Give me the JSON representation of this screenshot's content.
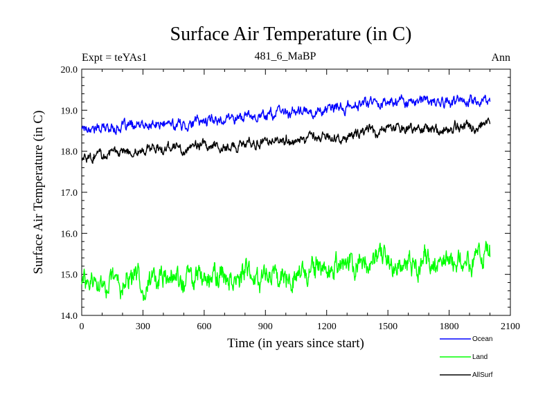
{
  "chart_data": {
    "type": "line",
    "title": "Surface Air Temperature (in C)",
    "expt_label": "Expt = teYAs1",
    "subtitle": "481_6_MaBP",
    "period": "Ann",
    "xlabel": "Time (in years since start)",
    "ylabel": "Surface Air Temperature (in C)",
    "xlim": [
      0,
      2100
    ],
    "ylim": [
      14.0,
      20.0
    ],
    "x_ticks": [
      0,
      300,
      600,
      900,
      1200,
      1500,
      1800,
      2100
    ],
    "x_tick_labels": [
      "0",
      "300",
      "600",
      "900",
      "1200",
      "1500",
      "1800",
      "2100"
    ],
    "y_ticks": [
      14.0,
      15.0,
      16.0,
      17.0,
      18.0,
      19.0,
      20.0
    ],
    "y_tick_labels": [
      "14.0",
      "15.0",
      "16.0",
      "17.0",
      "18.0",
      "19.0",
      "20.0"
    ],
    "series": [
      {
        "name": "Ocean",
        "color": "#0000ff",
        "x": [
          0,
          100,
          200,
          300,
          400,
          500,
          600,
          700,
          800,
          900,
          1000,
          1100,
          1200,
          1300,
          1400,
          1500,
          1600,
          1700,
          1800,
          1900,
          2000
        ],
        "values": [
          18.6,
          18.55,
          18.6,
          18.6,
          18.65,
          18.65,
          18.75,
          18.8,
          18.85,
          18.9,
          18.95,
          18.95,
          19.0,
          19.05,
          19.2,
          19.2,
          19.25,
          19.2,
          19.2,
          19.25,
          19.2
        ],
        "noise": 0.12
      },
      {
        "name": "Land",
        "color": "#00ff00",
        "x": [
          0,
          100,
          200,
          300,
          400,
          500,
          600,
          700,
          800,
          900,
          1000,
          1100,
          1200,
          1300,
          1400,
          1500,
          1600,
          1700,
          1800,
          1900,
          2000
        ],
        "values": [
          14.8,
          14.75,
          14.8,
          14.85,
          14.85,
          14.85,
          15.0,
          14.95,
          14.95,
          15.05,
          15.05,
          15.1,
          15.15,
          15.2,
          15.3,
          15.3,
          15.3,
          15.3,
          15.3,
          15.35,
          15.5
        ],
        "noise": 0.28
      },
      {
        "name": "AllSurf",
        "color": "#000000",
        "x": [
          0,
          100,
          200,
          300,
          400,
          500,
          600,
          700,
          800,
          900,
          1000,
          1100,
          1200,
          1300,
          1400,
          1500,
          1600,
          1700,
          1800,
          1900,
          2000
        ],
        "values": [
          17.9,
          17.9,
          17.95,
          18.0,
          18.05,
          18.05,
          18.15,
          18.1,
          18.15,
          18.2,
          18.25,
          18.3,
          18.35,
          18.35,
          18.5,
          18.5,
          18.55,
          18.55,
          18.55,
          18.6,
          18.6
        ],
        "noise": 0.12
      }
    ],
    "legend_position": "bottom-right"
  }
}
